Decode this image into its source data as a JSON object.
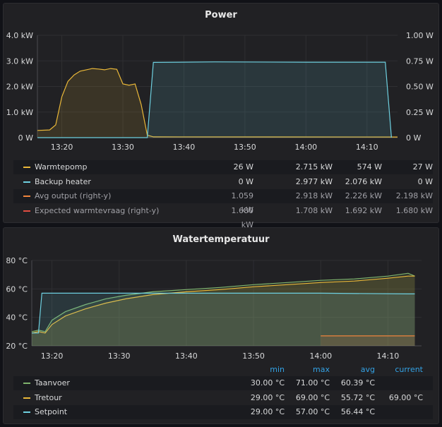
{
  "power": {
    "title": "Power",
    "chart_data": {
      "type": "line",
      "x_ticks": [
        "13:20",
        "13:30",
        "13:40",
        "13:50",
        "14:00",
        "14:10"
      ],
      "y_left_ticks": [
        "4.0 kW",
        "3.0 kW",
        "2.0 kW",
        "1.0 kW",
        "0 W"
      ],
      "y_right_ticks": [
        "1.00 W",
        "0.75 W",
        "0.50 W",
        "0.25 W",
        "0 W"
      ],
      "ylim_left": [
        0,
        4.0
      ],
      "ylim_right": [
        0,
        1.0
      ],
      "x_range": [
        "13:16",
        "14:15"
      ],
      "series": [
        {
          "name": "Warmtepomp",
          "unit": "kW",
          "color": "#eab839",
          "x": [
            "13:16",
            "13:18",
            "13:19",
            "13:20",
            "13:21",
            "13:22",
            "13:23",
            "13:24",
            "13:25",
            "13:26",
            "13:27",
            "13:28",
            "13:29",
            "13:30",
            "13:31",
            "13:32",
            "13:33",
            "13:34",
            "13:35",
            "14:15"
          ],
          "y": [
            0.28,
            0.3,
            0.5,
            1.6,
            2.2,
            2.45,
            2.6,
            2.65,
            2.7,
            2.68,
            2.65,
            2.7,
            2.67,
            2.1,
            2.05,
            2.1,
            1.3,
            0.1,
            0.03,
            0.026
          ]
        },
        {
          "name": "Backup heater",
          "unit": "kW",
          "color": "#6ed0e0",
          "x": [
            "13:16",
            "13:34",
            "13:35",
            "13:45",
            "14:00",
            "14:13",
            "14:14"
          ],
          "y": [
            0,
            0,
            2.94,
            2.96,
            2.95,
            2.95,
            0
          ]
        }
      ]
    },
    "legend": [
      {
        "name": "Warmtepomp",
        "color": "#eab839",
        "min": "26 W",
        "max": "2.715 kW",
        "avg": "574 W",
        "current": "27 W"
      },
      {
        "name": "Backup heater",
        "color": "#6ed0e0",
        "min": "0 W",
        "max": "2.977 kW",
        "avg": "2.076 kW",
        "current": "0 W"
      },
      {
        "name": "Avg output  (right-y)",
        "color": "#ef843c",
        "min": "1.059 kW",
        "max": "2.918 kW",
        "avg": "2.226 kW",
        "current": "2.198 kW"
      },
      {
        "name": "Expected warmtevraag  (right-y)",
        "color": "#e24d42",
        "min": "1.680 kW",
        "max": "1.708 kW",
        "avg": "1.692 kW",
        "current": "1.680 kW"
      }
    ]
  },
  "water": {
    "title": "Watertemperatuur",
    "chart_data": {
      "type": "line",
      "x_ticks": [
        "13:20",
        "13:30",
        "13:40",
        "13:50",
        "14:00",
        "14:10"
      ],
      "y_ticks": [
        "80 °C",
        "60 °C",
        "40 °C",
        "20 °C"
      ],
      "ylim": [
        20,
        80
      ],
      "x_range": [
        "13:17",
        "14:15"
      ],
      "series": [
        {
          "name": "Taanvoer",
          "unit": "°C",
          "color": "#7eb26d",
          "x": [
            "13:17",
            "13:18",
            "13:19",
            "13:20",
            "13:22",
            "13:25",
            "13:28",
            "13:31",
            "13:35",
            "13:40",
            "13:45",
            "13:50",
            "13:55",
            "14:00",
            "14:05",
            "14:10",
            "14:13",
            "14:14"
          ],
          "y": [
            30,
            31,
            30,
            38,
            44,
            49,
            53,
            55.5,
            58,
            59.5,
            61,
            63,
            64.5,
            66,
            67,
            69,
            71,
            69
          ]
        },
        {
          "name": "Tretour",
          "unit": "°C",
          "color": "#eab839",
          "x": [
            "13:17",
            "13:18",
            "13:19",
            "13:20",
            "13:22",
            "13:25",
            "13:28",
            "13:31",
            "13:35",
            "13:40",
            "13:45",
            "13:50",
            "13:55",
            "14:00",
            "14:05",
            "14:10",
            "14:13",
            "14:14"
          ],
          "y": [
            29,
            30,
            29,
            35,
            41,
            46,
            50,
            53,
            56,
            58,
            59.5,
            61.5,
            63,
            64.5,
            65.5,
            67.5,
            69,
            69
          ]
        },
        {
          "name": "Setpoint",
          "unit": "°C",
          "color": "#6ed0e0",
          "x": [
            "13:17",
            "13:18",
            "13:18.5",
            "13:20",
            "13:40",
            "14:00",
            "14:13",
            "14:14"
          ],
          "y": [
            29,
            29,
            57,
            57,
            57,
            57,
            56.5,
            56.5
          ]
        },
        {
          "name": "",
          "unit": "°C",
          "color": "#ef843c",
          "x": [
            "14:00",
            "14:14"
          ],
          "y": [
            27,
            27
          ]
        }
      ]
    },
    "legend_headers": {
      "min": "min",
      "max": "max",
      "avg": "avg",
      "current": "current"
    },
    "legend": [
      {
        "name": "Taanvoer",
        "color": "#7eb26d",
        "min": "30.00 °C",
        "max": "71.00 °C",
        "avg": "60.39 °C",
        "current": ""
      },
      {
        "name": "Tretour",
        "color": "#eab839",
        "min": "29.00 °C",
        "max": "69.00 °C",
        "avg": "55.72 °C",
        "current": "69.00 °C"
      },
      {
        "name": "Setpoint",
        "color": "#6ed0e0",
        "min": "29.00 °C",
        "max": "57.00 °C",
        "avg": "56.44 °C",
        "current": ""
      }
    ]
  }
}
